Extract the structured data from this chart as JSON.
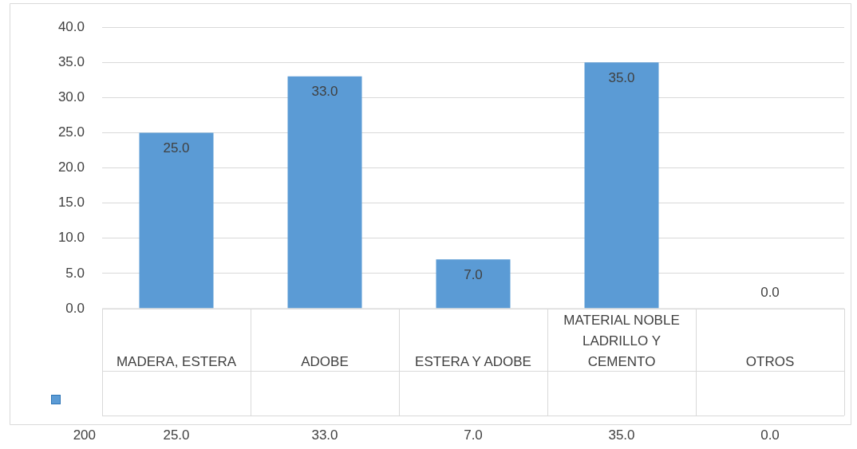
{
  "chart_data": {
    "type": "bar",
    "categories": [
      "MADERA, ESTERA",
      "ADOBE",
      "ESTERA Y ADOBE",
      "MATERIAL NOBLE LADRILLO Y CEMENTO",
      "OTROS"
    ],
    "series": [
      {
        "name": "200",
        "color": "#5b9bd5",
        "values": [
          25,
          33,
          7,
          35,
          0
        ],
        "value_labels": [
          "25.0",
          "33.0",
          "7.0",
          "35.0",
          "0.0"
        ]
      }
    ],
    "ylim": [
      0,
      40
    ],
    "yticks": [
      {
        "value": 0,
        "label": "0.0"
      },
      {
        "value": 5,
        "label": "5.0"
      },
      {
        "value": 10,
        "label": "10.0"
      },
      {
        "value": 15,
        "label": "15.0"
      },
      {
        "value": 20,
        "label": "20.0"
      },
      {
        "value": 25,
        "label": "25.0"
      },
      {
        "value": 30,
        "label": "30.0"
      },
      {
        "value": 35,
        "label": "35.0"
      },
      {
        "value": 40,
        "label": "40.0"
      }
    ],
    "grid": "y",
    "legend": "bottom left"
  }
}
